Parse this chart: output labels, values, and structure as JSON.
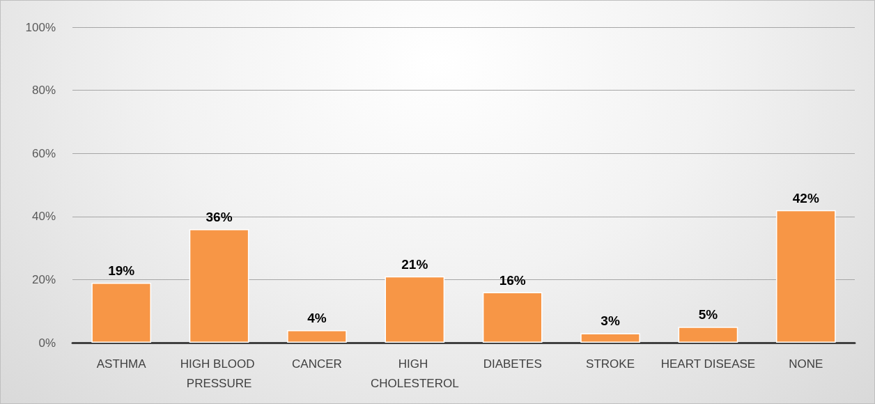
{
  "chart_data": {
    "type": "bar",
    "categories": [
      "ASTHMA",
      "HIGH BLOOD PRESSURE",
      "CANCER",
      "HIGH CHOLESTEROL",
      "DIABETES",
      "STROKE",
      "HEART DISEASE",
      "NONE"
    ],
    "values": [
      19,
      36,
      4,
      21,
      16,
      3,
      5,
      42
    ],
    "value_labels": [
      "19%",
      "36%",
      "4%",
      "21%",
      "16%",
      "3%",
      "5%",
      "42%"
    ],
    "color": "#f79646",
    "ylim": [
      0,
      100
    ],
    "yticks": [
      {
        "value": 0,
        "label": "0%"
      },
      {
        "value": 20,
        "label": "20%"
      },
      {
        "value": 40,
        "label": "40%"
      },
      {
        "value": 60,
        "label": "60%"
      },
      {
        "value": 80,
        "label": "80%"
      },
      {
        "value": 100,
        "label": "100%"
      }
    ],
    "grid": "y"
  }
}
